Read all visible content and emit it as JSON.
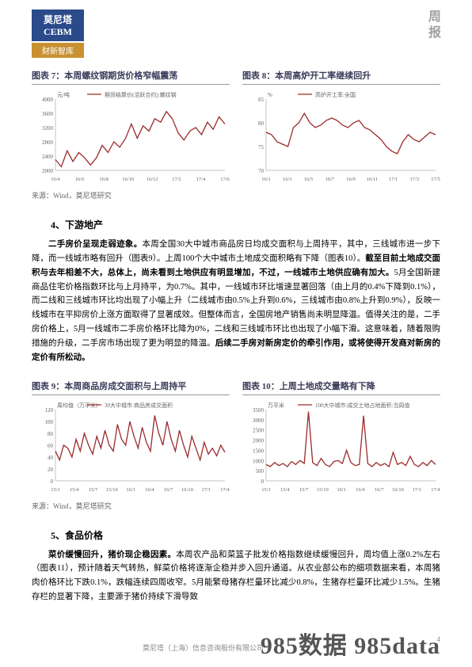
{
  "header": {
    "logo_main": "莫尼塔\nCEBM",
    "logo_sub": "财新智库",
    "right": "周报"
  },
  "chart7": {
    "title": "图表 7：本周螺纹钢期货价格窄幅震荡",
    "ylabel": "元/吨",
    "legend": "期货结算价(活跃合约):螺纹钢",
    "ylim": [
      2000,
      4000
    ],
    "ytick_step": 400,
    "xticks": [
      "16/4",
      "16/6",
      "16/8",
      "16/10",
      "16/12",
      "17/2",
      "17/4",
      "17/6"
    ],
    "color": "#9b2a2a",
    "data": [
      2300,
      2100,
      2550,
      2250,
      2500,
      2350,
      2150,
      2350,
      2700,
      2500,
      2800,
      2650,
      2900,
      3300,
      2900,
      3250,
      3100,
      3450,
      3350,
      3650,
      3450,
      3050,
      2850,
      3100,
      3200,
      3000,
      3350,
      3150,
      3500,
      3300
    ]
  },
  "chart8": {
    "title": "图表 8：本周高炉开工率继续回升",
    "ylabel": "%",
    "legend": "高炉开工率:全国",
    "ylim": [
      70,
      85
    ],
    "ytick_step": 5,
    "xticks": [
      "16/1",
      "16/3",
      "16/5",
      "16/7",
      "16/9",
      "16/11",
      "17/1",
      "17/3",
      "17/5"
    ],
    "color": "#9b2a2a",
    "data": [
      78,
      77.5,
      76,
      75.5,
      75,
      79,
      80,
      82,
      80,
      79,
      79.5,
      80.5,
      81,
      80.5,
      79.5,
      79,
      80,
      80.5,
      79,
      78.5,
      77.5,
      76.5,
      75,
      74,
      73.5,
      76,
      77.5,
      76.5,
      76,
      77,
      78,
      77.5
    ]
  },
  "chart9": {
    "title": "图表 9：本周商品房成交面积与上周持平",
    "ylabel": "周均值（万平米）",
    "legend": "30大中城市:商品房成交面积",
    "ylim": [
      0,
      120
    ],
    "ytick_step": 20,
    "xticks": [
      "15/1",
      "15/4",
      "15/7",
      "15/10",
      "16/1",
      "16/4",
      "16/7",
      "16/10",
      "17/1",
      "17/4"
    ],
    "color": "#9b2a2a",
    "data": [
      50,
      35,
      60,
      55,
      40,
      70,
      50,
      80,
      60,
      45,
      75,
      55,
      85,
      60,
      50,
      95,
      70,
      60,
      100,
      75,
      55,
      90,
      65,
      50,
      110,
      80,
      60,
      100,
      70,
      50,
      85,
      60,
      40,
      75,
      55,
      35,
      65,
      45,
      55,
      42,
      60,
      48
    ]
  },
  "chart10": {
    "title": "图表 10：上周土地成交量略有下降",
    "ylabel": "万平米",
    "legend": "100大中城市:成交土地占地面积:当周值",
    "ylim": [
      0,
      3500
    ],
    "ytick_step": 500,
    "xticks": [
      "15/1",
      "15/4",
      "15/7",
      "15/10",
      "16/1",
      "16/4",
      "16/7",
      "16/10",
      "17/1",
      "17/4"
    ],
    "color": "#9b2a2a",
    "data": [
      800,
      700,
      900,
      750,
      850,
      700,
      950,
      800,
      1000,
      850,
      3400,
      900,
      750,
      1100,
      800,
      700,
      950,
      1000,
      850,
      1500,
      900,
      750,
      800,
      3200,
      850,
      700,
      900,
      750,
      850,
      700,
      1400,
      800,
      900,
      750,
      1200,
      800,
      700,
      900,
      750,
      1000,
      800
    ]
  },
  "source12": "来源：Wind，莫尼塔研究",
  "source34": "来源：Wind，莫尼塔研究",
  "section4": {
    "title": "4、下游地产",
    "p1_lead": "二手房价呈现走弱迹象。",
    "p1": "本周全国30大中城市商品房日均成交面积与上周持平，其中，三线城市进一步下降，而一线城市略有回升（图表9）。上周100个大中城市土地成交面积略有下降（图表10）。",
    "p1_bold": "截至目前土地成交面积与去年相差不大，总体上，尚未看到土地供应有明显增加，不过，一线城市土地供应确有加大。",
    "p1_tail": "5月全国新建商品住宅价格指数环比与上月持平，为0.7%。其中，一线城市环比增速显著回落（由上月的0.4%下降到0.1%），而二线和三线城市环比均出现了小幅上升（二线城市由0.5%上升到0.6%，三线城市由0.8%上升到0.9%），反映一线城市在平抑房价上涨方面取得了显著成效。但整体而言，全国房地产销售尚未明显降温。值得关注的是，二手房价格上，5月一线城市二手房价格环比降为0%，二线和三线城市环比也出现了小幅下滑。这意味着，随着限购措施的升级，二手房市场出现了更为明显的降温。",
    "p1_bold2": "后续二手房对新房定价的牵引作用，或将使得开发商对新房的定价有所松动。"
  },
  "section5": {
    "title": "5、食品价格",
    "p1_lead": "菜价缓慢回升，猪价现企稳因素。",
    "p1": "本周农产品和菜篮子批发价格指数继续缓慢回升，周均值上涨0.2%左右（图表11），预计随着天气转热，鲜菜价格将逐渐企稳并步入回升通道。从农业部公布的细项数据来看，本周猪肉价格环比下跌0.1%，跌幅连续四周收窄。5月能繁母猪存栏量环比减少0.8%，生猪存栏量环比减少1.5%。生猪存栏的显著下降，主要源于猪价持续下滑导致"
  },
  "footer": "莫尼塔（上海）信息咨询股份有限公司",
  "watermark": "985数据 985data",
  "pagenum": "4"
}
